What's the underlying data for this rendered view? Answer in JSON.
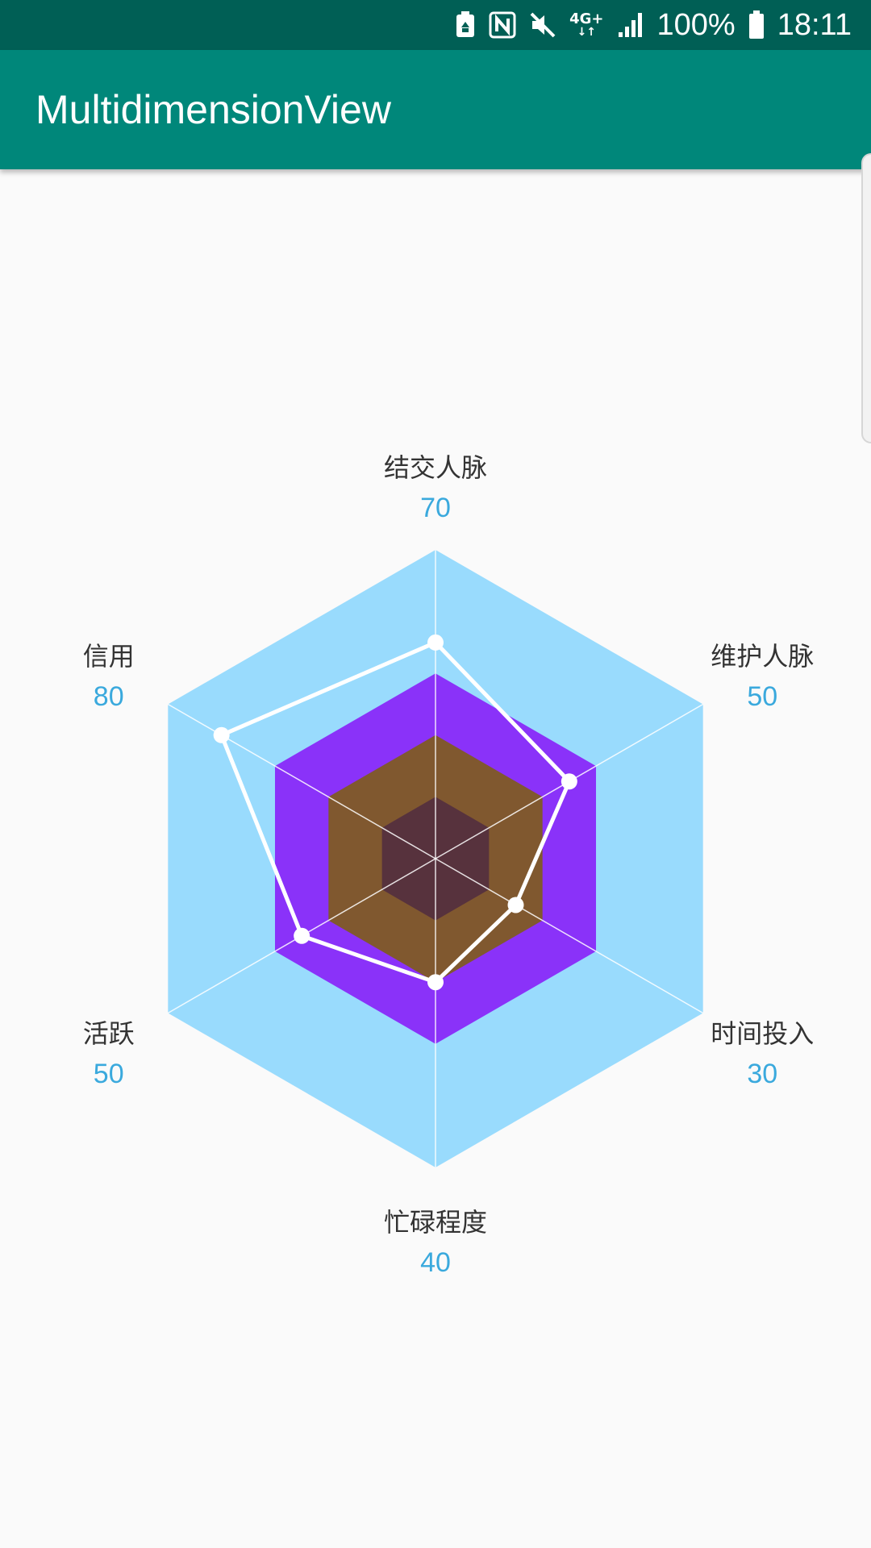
{
  "status_bar": {
    "battery_text": "100%",
    "time": "18:11",
    "network": "4G+",
    "icons": [
      "recycle-battery-icon",
      "nfc-icon",
      "mute-icon",
      "signal-icon",
      "battery-icon"
    ]
  },
  "app_bar": {
    "title": "MultidimensionView",
    "color": "#00877a",
    "status_color": "#005f55"
  },
  "chart_data": {
    "type": "radar",
    "max": 100,
    "axes": [
      {
        "label": "结交人脉",
        "value": 70
      },
      {
        "label": "维护人脉",
        "value": 50
      },
      {
        "label": "时间投入",
        "value": 30
      },
      {
        "label": "忙碌程度",
        "value": 40
      },
      {
        "label": "活跃",
        "value": 50
      },
      {
        "label": "信用",
        "value": 80
      }
    ],
    "ring_colors": [
      "#99dbfd",
      "#8a32f9",
      "#80582f",
      "#57323d"
    ],
    "value_color": "#3aa9dd",
    "line_color": "#ffffff"
  }
}
